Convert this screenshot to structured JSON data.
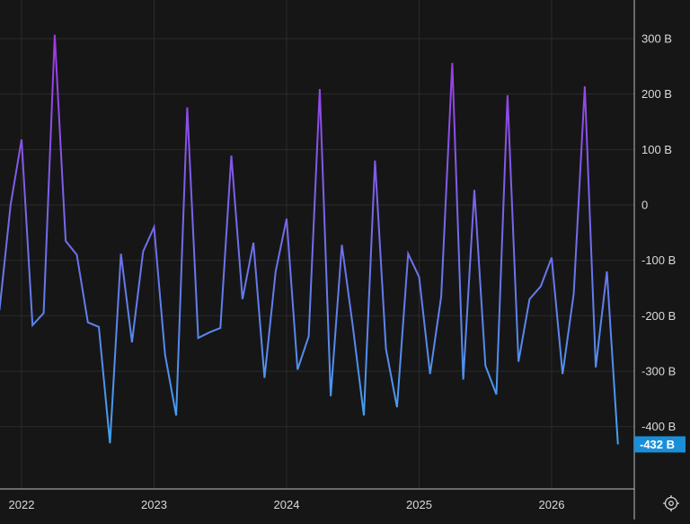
{
  "chart_data": {
    "type": "line",
    "title": "",
    "xlabel": "",
    "ylabel": "",
    "unit": "B",
    "ylim": [
      -500,
      370
    ],
    "grid": true,
    "y_ticks": [
      300,
      200,
      100,
      0,
      -100,
      -200,
      -300,
      -400
    ],
    "y_tick_labels": [
      "300 B",
      "200 B",
      "100 B",
      "0",
      "-100 B",
      "-200 B",
      "-300 B",
      "-400 B"
    ],
    "x_tick_labels": [
      "2022",
      "2023",
      "2024",
      "2025",
      "2026"
    ],
    "x_ticks": [
      2022.0,
      2023.0,
      2024.0,
      2025.0,
      2026.0
    ],
    "xlim": [
      2021.84,
      2026.62
    ],
    "series": [
      {
        "values": [
          [
            2021.833,
            -190
          ],
          [
            2021.917,
            0
          ],
          [
            2022.0,
            118
          ],
          [
            2022.083,
            -217
          ],
          [
            2022.167,
            -195
          ],
          [
            2022.25,
            307
          ],
          [
            2022.333,
            -65
          ],
          [
            2022.417,
            -90
          ],
          [
            2022.5,
            -212
          ],
          [
            2022.583,
            -220
          ],
          [
            2022.667,
            -430
          ],
          [
            2022.75,
            -88
          ],
          [
            2022.833,
            -248
          ],
          [
            2022.917,
            -84
          ],
          [
            2023.0,
            -40
          ],
          [
            2023.083,
            -270
          ],
          [
            2023.167,
            -380
          ],
          [
            2023.25,
            176
          ],
          [
            2023.333,
            -240
          ],
          [
            2023.417,
            -230
          ],
          [
            2023.5,
            -222
          ],
          [
            2023.583,
            89
          ],
          [
            2023.667,
            -170
          ],
          [
            2023.75,
            -68
          ],
          [
            2023.833,
            -312
          ],
          [
            2023.917,
            -120
          ],
          [
            2024.0,
            -25
          ],
          [
            2024.083,
            -297
          ],
          [
            2024.167,
            -237
          ],
          [
            2024.25,
            209
          ],
          [
            2024.333,
            -345
          ],
          [
            2024.417,
            -72
          ],
          [
            2024.5,
            -220
          ],
          [
            2024.583,
            -380
          ],
          [
            2024.667,
            80
          ],
          [
            2024.75,
            -260
          ],
          [
            2024.833,
            -365
          ],
          [
            2024.917,
            -88
          ],
          [
            2025.0,
            -130
          ],
          [
            2025.083,
            -305
          ],
          [
            2025.167,
            -165
          ],
          [
            2025.25,
            256
          ],
          [
            2025.333,
            -315
          ],
          [
            2025.417,
            27
          ],
          [
            2025.5,
            -290
          ],
          [
            2025.583,
            -342
          ],
          [
            2025.667,
            198
          ],
          [
            2025.75,
            -283
          ],
          [
            2025.833,
            -170
          ],
          [
            2025.917,
            -147
          ],
          [
            2026.0,
            -95
          ],
          [
            2026.083,
            -305
          ],
          [
            2026.167,
            -160
          ],
          [
            2026.25,
            214
          ],
          [
            2026.333,
            -293
          ],
          [
            2026.417,
            -120
          ],
          [
            2026.5,
            -432
          ]
        ],
        "color_top": "#a335e6",
        "color_bottom": "#3fa4f0"
      }
    ],
    "last_value_label": "-432 B",
    "last_value_color": "#1a8fd8"
  },
  "colors": {
    "background": "#161616",
    "grid": "#2b2b2b",
    "axis": "#bdbdbd"
  },
  "icons": {
    "settings": "settings-gear-icon"
  }
}
